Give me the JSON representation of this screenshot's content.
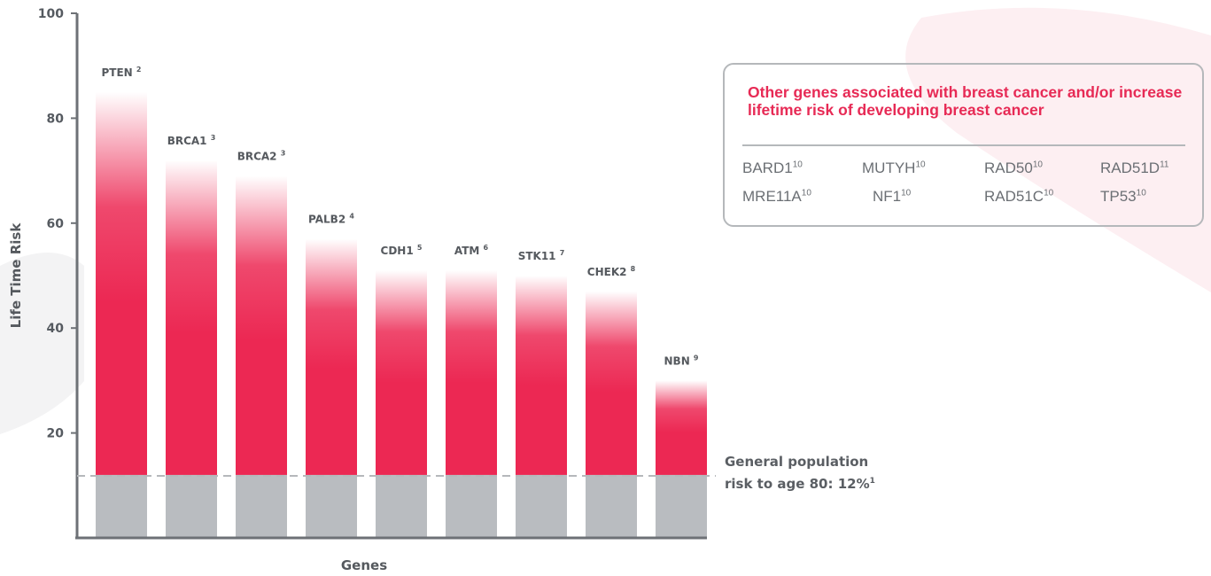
{
  "chart_data": {
    "type": "bar",
    "categories": [
      "PTEN",
      "BRCA1",
      "BRCA2",
      "PALB2",
      "CDH1",
      "ATM",
      "STK11",
      "CHEK2",
      "NBN"
    ],
    "category_refs": [
      "2",
      "3",
      "3",
      "4",
      "5",
      "6",
      "7",
      "8",
      "9"
    ],
    "values": [
      85,
      72,
      69,
      57,
      51,
      51,
      50,
      47,
      30
    ],
    "baseline_value": 12,
    "ylim": [
      0,
      100
    ],
    "yticks": [
      20,
      40,
      60,
      80,
      100
    ],
    "xlabel": "Genes",
    "ylabel": "Life Time Risk",
    "grid": false,
    "colors": {
      "bar": "#ec2853",
      "baseline": "#b9bcc0",
      "axis": "#6d7176"
    }
  },
  "population_note": {
    "line1": "General population",
    "line2": "risk to age 80: 12%",
    "ref": "1"
  },
  "other_genes": {
    "title": "Other genes associated with breast cancer and/or increase lifetime risk of developing breast cancer",
    "genes": [
      {
        "name": "BARD1",
        "ref": "10"
      },
      {
        "name": "MUTYH",
        "ref": "10"
      },
      {
        "name": "RAD50",
        "ref": "10"
      },
      {
        "name": "RAD51D",
        "ref": "11"
      },
      {
        "name": "MRE11A",
        "ref": "10"
      },
      {
        "name": "NF1",
        "ref": "10"
      },
      {
        "name": "RAD51C",
        "ref": "10"
      },
      {
        "name": "TP53",
        "ref": "10"
      }
    ]
  },
  "colors": {
    "accent": "#e72a55",
    "decor_pink": "#fdeff2",
    "decor_gray": "#f3f3f4"
  }
}
